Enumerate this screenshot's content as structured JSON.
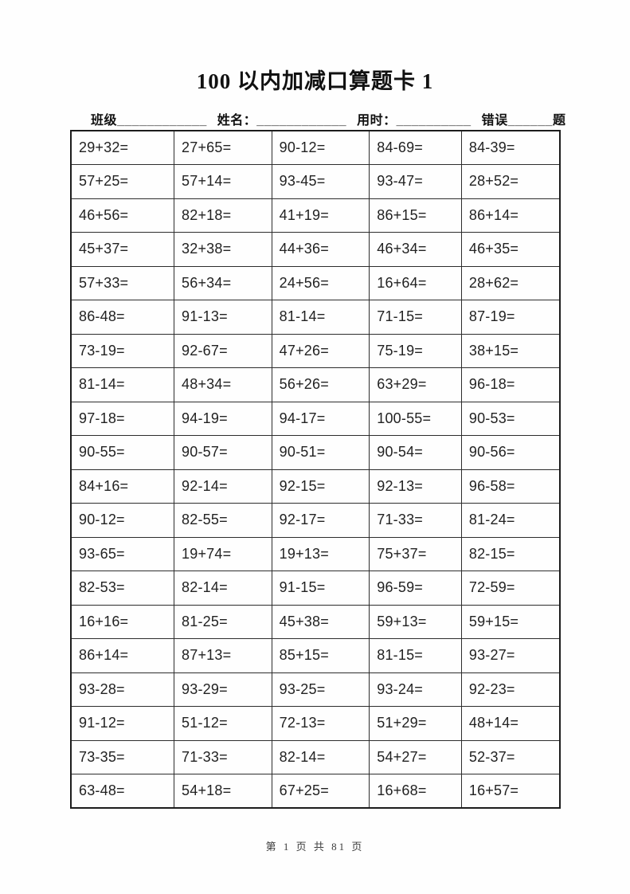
{
  "title": "100 以内加减口算题卡 1",
  "header": {
    "class_field": "班级____________",
    "name_field": "姓名：____________",
    "time_field": "用时：__________",
    "errors_field": "错误______题"
  },
  "table": {
    "rows": [
      [
        "29+32=",
        "27+65=",
        "90-12=",
        "84-69=",
        "84-39="
      ],
      [
        "57+25=",
        "57+14=",
        "93-45=",
        "93-47=",
        "28+52="
      ],
      [
        "46+56=",
        "82+18=",
        "41+19=",
        "86+15=",
        "86+14="
      ],
      [
        "45+37=",
        "32+38=",
        "44+36=",
        "46+34=",
        "46+35="
      ],
      [
        "57+33=",
        "56+34=",
        "24+56=",
        "16+64=",
        "28+62="
      ],
      [
        "86-48=",
        "91-13=",
        "81-14=",
        "71-15=",
        "87-19="
      ],
      [
        "73-19=",
        "92-67=",
        "47+26=",
        "75-19=",
        "38+15="
      ],
      [
        "81-14=",
        "48+34=",
        "56+26=",
        "63+29=",
        "96-18="
      ],
      [
        "97-18=",
        "94-19=",
        "94-17=",
        "100-55=",
        "90-53="
      ],
      [
        "90-55=",
        "90-57=",
        "90-51=",
        "90-54=",
        "90-56="
      ],
      [
        "84+16=",
        "92-14=",
        "92-15=",
        "92-13=",
        "96-58="
      ],
      [
        "90-12=",
        "82-55=",
        "92-17=",
        "71-33=",
        "81-24="
      ],
      [
        "93-65=",
        "19+74=",
        "19+13=",
        "75+37=",
        "82-15="
      ],
      [
        "82-53=",
        "82-14=",
        "91-15=",
        "96-59=",
        "72-59="
      ],
      [
        "16+16=",
        "81-25=",
        "45+38=",
        "59+13=",
        "59+15="
      ],
      [
        "86+14=",
        "87+13=",
        "85+15=",
        "81-15=",
        "93-27="
      ],
      [
        "93-28=",
        "93-29=",
        "93-25=",
        "93-24=",
        "92-23="
      ],
      [
        "91-12=",
        "51-12=",
        "72-13=",
        "51+29=",
        "48+14="
      ],
      [
        "73-35=",
        "71-33=",
        "82-14=",
        "54+27=",
        "52-37="
      ],
      [
        "63-48=",
        "54+18=",
        "67+25=",
        "16+68=",
        "16+57="
      ]
    ]
  },
  "footer": {
    "page_text": "第 1 页 共 81 页"
  }
}
